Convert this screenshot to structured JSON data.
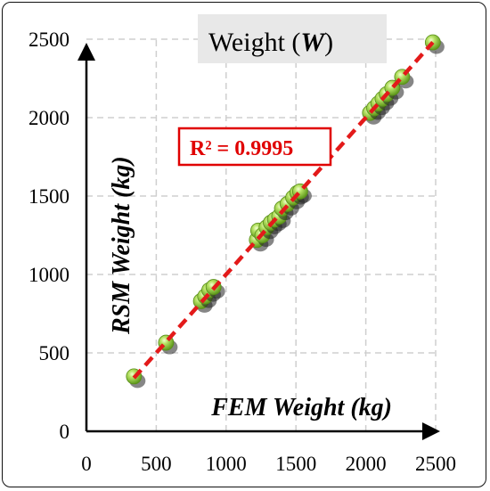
{
  "chart_data": {
    "type": "scatter",
    "title": "Weight (",
    "title_symbol": "W",
    "title_close": ")",
    "xlabel": "FEM Weight (kg)",
    "ylabel": "RSM Weight (kg)",
    "xlim": [
      0,
      2500
    ],
    "ylim": [
      0,
      2500
    ],
    "xticks": [
      "0",
      "500",
      "1000",
      "1500",
      "2000",
      "2500"
    ],
    "yticks": [
      "0",
      "500",
      "1000",
      "1500",
      "2000",
      "2500"
    ],
    "grid": true,
    "annotation": "R² = 0.9995",
    "series": [
      {
        "marker_color": "#8ccc3c",
        "points": [
          {
            "x": 340,
            "y": 350
          },
          {
            "x": 570,
            "y": 565
          },
          {
            "x": 820,
            "y": 830
          },
          {
            "x": 850,
            "y": 860
          },
          {
            "x": 880,
            "y": 900
          },
          {
            "x": 910,
            "y": 920
          },
          {
            "x": 1220,
            "y": 1220
          },
          {
            "x": 1230,
            "y": 1280
          },
          {
            "x": 1260,
            "y": 1250
          },
          {
            "x": 1290,
            "y": 1300
          },
          {
            "x": 1320,
            "y": 1330
          },
          {
            "x": 1350,
            "y": 1350
          },
          {
            "x": 1380,
            "y": 1370
          },
          {
            "x": 1400,
            "y": 1420
          },
          {
            "x": 1440,
            "y": 1450
          },
          {
            "x": 1480,
            "y": 1490
          },
          {
            "x": 1510,
            "y": 1520
          },
          {
            "x": 1530,
            "y": 1530
          },
          {
            "x": 2030,
            "y": 2030
          },
          {
            "x": 2060,
            "y": 2060
          },
          {
            "x": 2090,
            "y": 2090
          },
          {
            "x": 2120,
            "y": 2120
          },
          {
            "x": 2150,
            "y": 2150
          },
          {
            "x": 2190,
            "y": 2190
          },
          {
            "x": 2260,
            "y": 2260
          },
          {
            "x": 2480,
            "y": 2480
          }
        ]
      }
    ],
    "fit_line": {
      "x": [
        340,
        2480
      ],
      "color": "#e31a1a"
    }
  }
}
